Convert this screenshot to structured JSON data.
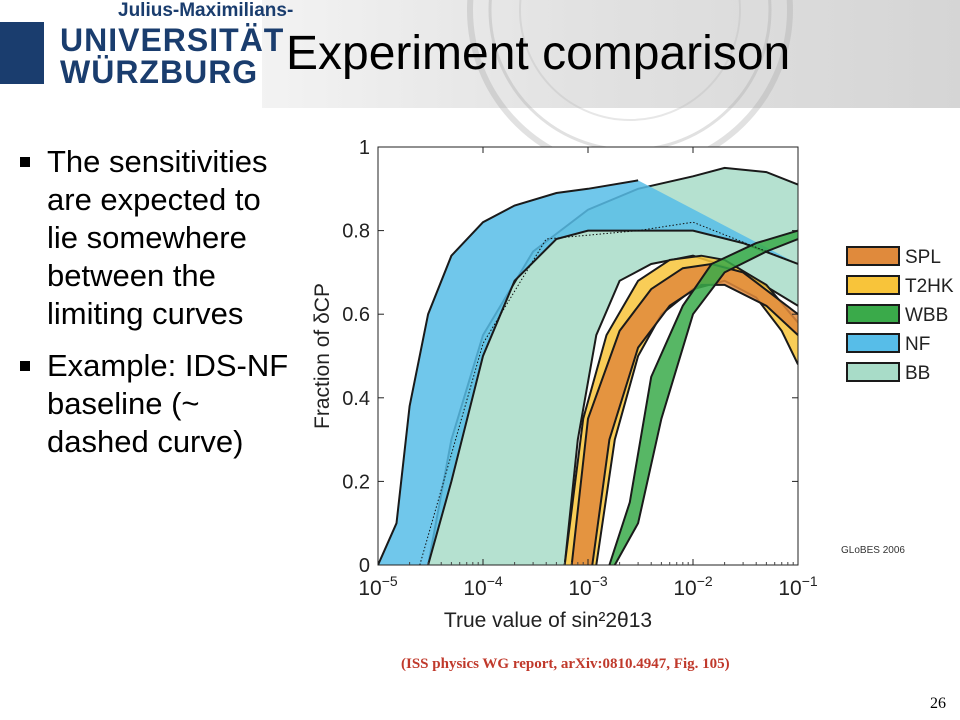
{
  "header": {
    "logo_small": "Julius-Maximilians-",
    "logo_line1": "UNIVERSITÄT",
    "logo_line2": "WÜRZBURG",
    "title": "Experiment comparison"
  },
  "bullets": [
    "The sensitivities are expected to lie somewhere between the limiting curves",
    "Example: IDS-NF baseline (~ dashed curve)"
  ],
  "citation": "(ISS physics WG report, arXiv:0810.4947, Fig. 105)",
  "page_number": "26",
  "chart_data": {
    "type": "area",
    "title": "",
    "xlabel": "True value of sin²2θ13",
    "ylabel": "Fraction of δCP",
    "x_scale": "log",
    "xlim": [
      1e-05,
      0.1
    ],
    "ylim": [
      0,
      1
    ],
    "x_ticks": [
      {
        "value": 1e-05,
        "base": "10",
        "exp": "−5"
      },
      {
        "value": 0.0001,
        "base": "10",
        "exp": "−4"
      },
      {
        "value": 0.001,
        "base": "10",
        "exp": "−3"
      },
      {
        "value": 0.01,
        "base": "10",
        "exp": "−2"
      },
      {
        "value": 0.1,
        "base": "10",
        "exp": "−1"
      }
    ],
    "y_ticks": [
      {
        "value": 0,
        "label": "0"
      },
      {
        "value": 0.2,
        "label": "0.2"
      },
      {
        "value": 0.4,
        "label": "0.4"
      },
      {
        "value": 0.6,
        "label": "0.6"
      },
      {
        "value": 0.8,
        "label": "0.8"
      },
      {
        "value": 1,
        "label": "1"
      }
    ],
    "legend_position": "right",
    "watermark": "GLoBES 2006",
    "series": [
      {
        "name": "BB",
        "color": "#a8dcc8",
        "lower": {
          "x": [
            0.0006,
            0.0008,
            0.0012,
            0.002,
            0.004,
            0.01,
            0.03,
            0.1
          ],
          "y": [
            0,
            0.3,
            0.55,
            0.68,
            0.72,
            0.74,
            0.7,
            0.62
          ]
        },
        "upper": {
          "x": [
            3e-05,
            5e-05,
            0.0001,
            0.0003,
            0.001,
            0.003,
            0.01,
            0.02,
            0.05,
            0.1
          ],
          "y": [
            0,
            0.3,
            0.55,
            0.75,
            0.85,
            0.9,
            0.93,
            0.95,
            0.94,
            0.91
          ]
        }
      },
      {
        "name": "NF",
        "color": "#57bde8",
        "lower": {
          "x": [
            3e-05,
            5e-05,
            0.0001,
            0.0002,
            0.0005,
            0.001,
            0.003,
            0.01,
            0.03,
            0.1
          ],
          "y": [
            0,
            0.2,
            0.5,
            0.68,
            0.78,
            0.8,
            0.8,
            0.8,
            0.77,
            0.72
          ]
        },
        "upper": {
          "x": [
            1e-05,
            1.5e-05,
            2e-05,
            3e-05,
            5e-05,
            0.0001,
            0.0002,
            0.0005,
            0.001,
            0.003
          ],
          "y": [
            0,
            0.1,
            0.38,
            0.6,
            0.74,
            0.82,
            0.86,
            0.89,
            0.9,
            0.92
          ]
        }
      },
      {
        "name": "T2HK",
        "color": "#f8c43a",
        "lower": {
          "x": [
            0.0012,
            0.0018,
            0.003,
            0.005,
            0.01,
            0.02,
            0.04,
            0.07,
            0.1
          ],
          "y": [
            0,
            0.3,
            0.5,
            0.6,
            0.66,
            0.68,
            0.64,
            0.56,
            0.48
          ]
        },
        "upper": {
          "x": [
            0.0006,
            0.0009,
            0.0015,
            0.003,
            0.006,
            0.012,
            0.02,
            0.05,
            0.1
          ],
          "y": [
            0,
            0.35,
            0.55,
            0.68,
            0.73,
            0.74,
            0.73,
            0.67,
            0.58
          ]
        }
      },
      {
        "name": "SPL",
        "color": "#e08a3c",
        "lower": {
          "x": [
            0.0011,
            0.0016,
            0.003,
            0.006,
            0.012,
            0.02,
            0.05,
            0.1
          ],
          "y": [
            0,
            0.3,
            0.52,
            0.62,
            0.67,
            0.67,
            0.62,
            0.55
          ]
        },
        "upper": {
          "x": [
            0.0007,
            0.001,
            0.002,
            0.004,
            0.008,
            0.015,
            0.03,
            0.1
          ],
          "y": [
            0,
            0.35,
            0.56,
            0.66,
            0.71,
            0.72,
            0.7,
            0.6
          ]
        }
      },
      {
        "name": "WBB",
        "color": "#3aaa4a",
        "lower": {
          "x": [
            0.0018,
            0.003,
            0.005,
            0.01,
            0.02,
            0.05,
            0.1
          ],
          "y": [
            0,
            0.1,
            0.35,
            0.6,
            0.7,
            0.75,
            0.78
          ]
        },
        "upper": {
          "x": [
            0.0016,
            0.0025,
            0.004,
            0.008,
            0.015,
            0.04,
            0.1
          ],
          "y": [
            0,
            0.15,
            0.45,
            0.62,
            0.72,
            0.77,
            0.8
          ]
        }
      }
    ],
    "reference_line": {
      "style": "dotted",
      "x": [
        2.5e-05,
        0.0001,
        0.0004,
        0.003,
        0.01,
        0.1
      ],
      "y": [
        0,
        0.53,
        0.78,
        0.8,
        0.82,
        0.72
      ]
    }
  }
}
